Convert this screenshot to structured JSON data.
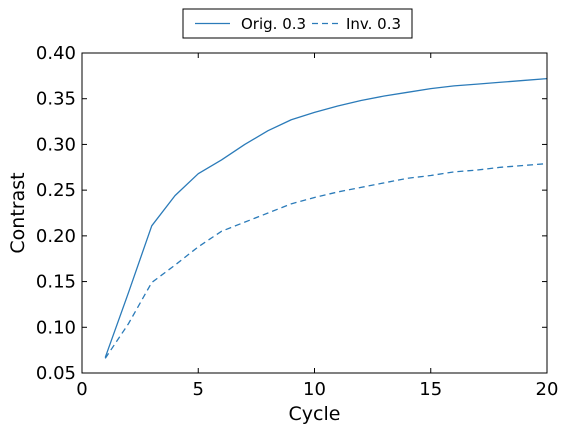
{
  "chart_data": {
    "type": "line",
    "title": "",
    "xlabel": "Cycle",
    "ylabel": "Contrast",
    "xlim": [
      0,
      20
    ],
    "ylim": [
      0.05,
      0.4
    ],
    "xticks": [
      0,
      5,
      10,
      15,
      20
    ],
    "xtick_labels": [
      "0",
      "5",
      "10",
      "15",
      "20"
    ],
    "yticks": [
      0.05,
      0.1,
      0.15,
      0.2,
      0.25,
      0.3,
      0.35,
      0.4
    ],
    "ytick_labels": [
      "0.05",
      "0.10",
      "0.15",
      "0.20",
      "0.25",
      "0.30",
      "0.35",
      "0.40"
    ],
    "grid": false,
    "legend_position": "top-center",
    "color": "#2b7bb9",
    "series": [
      {
        "name": "Orig. 0.3",
        "style": "solid",
        "x": [
          1,
          2,
          3,
          4,
          5,
          6,
          7,
          8,
          9,
          10,
          11,
          12,
          13,
          14,
          15,
          16,
          17,
          18,
          19,
          20
        ],
        "y": [
          0.067,
          0.138,
          0.211,
          0.244,
          0.268,
          0.283,
          0.3,
          0.315,
          0.327,
          0.335,
          0.342,
          0.348,
          0.353,
          0.357,
          0.361,
          0.364,
          0.366,
          0.368,
          0.37,
          0.372
        ]
      },
      {
        "name": "Inv. 0.3",
        "style": "dashed",
        "x": [
          1,
          2,
          3,
          4,
          5,
          6,
          7,
          8,
          9,
          10,
          11,
          12,
          13,
          14,
          15,
          16,
          17,
          18,
          19,
          20
        ],
        "y": [
          0.066,
          0.104,
          0.149,
          0.168,
          0.188,
          0.205,
          0.215,
          0.225,
          0.235,
          0.242,
          0.248,
          0.253,
          0.258,
          0.263,
          0.266,
          0.27,
          0.272,
          0.275,
          0.277,
          0.279
        ]
      }
    ]
  }
}
